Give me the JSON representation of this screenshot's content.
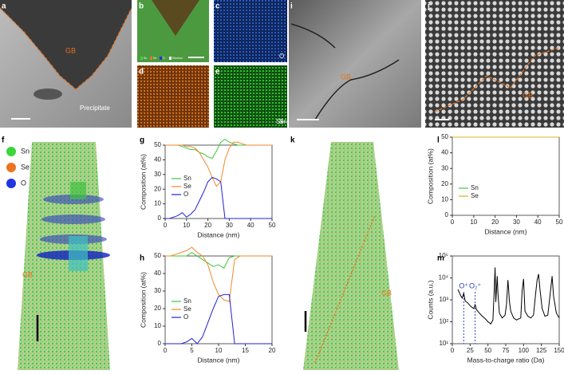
{
  "panel_labels": [
    "a",
    "b",
    "c",
    "d",
    "e",
    "f",
    "g",
    "h",
    "i",
    "j",
    "k",
    "l",
    "m"
  ],
  "image_annotations": {
    "a_gb": "GB",
    "a_precipitate": "Precipitate",
    "b_legend": [
      "Sn",
      "Se",
      "O",
      "Electron"
    ],
    "c_label": "O",
    "d_label": "Se",
    "e_label": "Sn",
    "i_gb": "GB",
    "j_gb": "GB",
    "f_legend": [
      {
        "name": "Sn",
        "color": "#3ad63a"
      },
      {
        "name": "Se",
        "color": "#ec7420"
      },
      {
        "name": "O",
        "color": "#1e35e0"
      }
    ],
    "f_gb": "GB",
    "k_gb": "GB"
  },
  "chart_data": [
    {
      "type": "line",
      "xlabel": "Distance (nm)",
      "ylabel": "Composition (at%)",
      "x": [
        0,
        2,
        4,
        6,
        8,
        10,
        12,
        14,
        16,
        18,
        20,
        22,
        24,
        26,
        28,
        30,
        32,
        34,
        36,
        38,
        40,
        42,
        44,
        46,
        48,
        50
      ],
      "series": [
        {
          "name": "Sn",
          "color": "#3cc83c",
          "values": [
            50,
            50,
            50,
            50,
            49,
            48,
            47,
            47,
            45,
            44,
            42,
            41,
            46,
            52,
            54,
            52,
            51,
            50,
            50,
            50,
            50,
            50,
            50,
            50,
            50,
            50
          ]
        },
        {
          "name": "Se",
          "color": "#f08a2c",
          "values": [
            50,
            50,
            50,
            50,
            50,
            49,
            49,
            48,
            45,
            40,
            35,
            28,
            22,
            25,
            40,
            48,
            52,
            52,
            51,
            50,
            50,
            50,
            50,
            50,
            50,
            50
          ]
        },
        {
          "name": "O",
          "color": "#2020d8",
          "values": [
            0,
            0,
            1,
            2,
            4,
            1,
            3,
            6,
            12,
            18,
            25,
            28,
            27,
            25,
            0,
            0,
            0,
            0,
            0,
            0,
            0,
            0,
            0,
            0,
            0,
            0
          ]
        }
      ],
      "xlim": [
        0,
        50
      ],
      "ylim": [
        0,
        50
      ],
      "xticks": [
        0,
        10,
        20,
        30,
        40,
        50
      ],
      "yticks": [
        0,
        10,
        20,
        30,
        40,
        50
      ]
    },
    {
      "type": "line",
      "xlabel": "Distance (nm)",
      "ylabel": "Composition (at%)",
      "x": [
        0,
        1,
        2,
        3,
        4,
        5,
        6,
        7,
        8,
        9,
        10,
        11,
        12,
        13,
        14,
        15,
        16,
        17,
        18,
        19,
        20
      ],
      "series": [
        {
          "name": "Sn",
          "color": "#3cc83c",
          "values": [
            50,
            50,
            50,
            50,
            50,
            52,
            50,
            48,
            46,
            44,
            45,
            43,
            49,
            50,
            50,
            50,
            50,
            50,
            50,
            50,
            50
          ]
        },
        {
          "name": "Se",
          "color": "#f08a2c",
          "values": [
            50,
            50,
            51,
            52,
            53,
            55,
            52,
            50,
            45,
            35,
            28,
            25,
            24,
            48,
            50,
            50,
            50,
            50,
            50,
            50,
            50
          ]
        },
        {
          "name": "O",
          "color": "#2020d8",
          "values": [
            0,
            0,
            0,
            0,
            1,
            3,
            0,
            4,
            12,
            20,
            27,
            28,
            28,
            0,
            0,
            0,
            0,
            0,
            0,
            0,
            0
          ]
        }
      ],
      "xlim": [
        0,
        20
      ],
      "ylim": [
        0,
        50
      ],
      "xticks": [
        0,
        5,
        10,
        15,
        20
      ],
      "yticks": [
        0,
        10,
        20,
        30,
        40,
        50
      ]
    },
    {
      "type": "line",
      "xlabel": "Distance (nm)",
      "ylabel": "Composition (at%)",
      "x": [
        0,
        50
      ],
      "series": [
        {
          "name": "Sn",
          "color": "#3cc83c",
          "values": [
            50,
            50
          ]
        },
        {
          "name": "Se",
          "color": "#d8b020",
          "values": [
            50,
            50
          ]
        }
      ],
      "xlim": [
        0,
        50
      ],
      "ylim": [
        0,
        50
      ],
      "xticks": [
        0,
        10,
        20,
        30,
        40,
        50
      ],
      "yticks": [
        0,
        10,
        20,
        30,
        40,
        50
      ]
    },
    {
      "type": "line",
      "xlabel": "Mass-to-charge ratio (Da)",
      "ylabel": "Counts (a.u.)",
      "log_y": true,
      "x": [
        8,
        12,
        14,
        16,
        18,
        22,
        26,
        30,
        32,
        34,
        38,
        42,
        46,
        50,
        54,
        57,
        59,
        60,
        61,
        63,
        64,
        66,
        70,
        74,
        76,
        78,
        79,
        80,
        82,
        86,
        90,
        96,
        98,
        100,
        102,
        106,
        110,
        114,
        117,
        119,
        121,
        123,
        126,
        130,
        134,
        138,
        140,
        142,
        146,
        150
      ],
      "series": [
        {
          "color": "#000000",
          "values": [
            3000,
            1500,
            1200,
            2000,
            900,
            700,
            500,
            400,
            600,
            350,
            250,
            180,
            140,
            100,
            80,
            120,
            4000,
            30000,
            800,
            12000,
            2000,
            250,
            150,
            200,
            600,
            8000,
            3000,
            900,
            300,
            150,
            120,
            150,
            2500,
            9000,
            300,
            180,
            150,
            200,
            2000,
            8000,
            15000,
            3000,
            400,
            180,
            200,
            3000,
            12000,
            1500,
            250,
            150
          ]
        }
      ],
      "annotations": [
        {
          "text": "O⁺",
          "x": 16
        },
        {
          "text": "O₂⁺",
          "x": 32
        }
      ],
      "xlim": [
        0,
        150
      ],
      "ylim": [
        10,
        100000
      ],
      "xticks": [
        0,
        25,
        50,
        75,
        100,
        125,
        150
      ],
      "yticks": [
        {
          "value": 10,
          "label": "10¹"
        },
        {
          "value": 100,
          "label": "10²"
        },
        {
          "value": 1000,
          "label": "10³"
        },
        {
          "value": 10000,
          "label": "10⁴"
        },
        {
          "value": 100000,
          "label": "10⁵"
        }
      ]
    }
  ]
}
